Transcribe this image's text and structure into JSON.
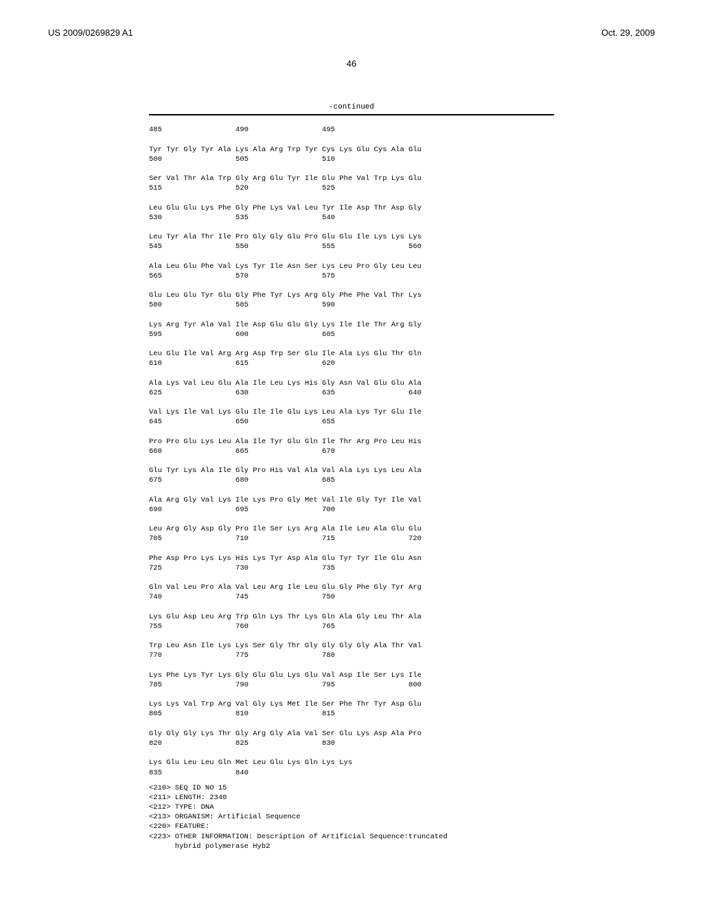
{
  "header": {
    "left": "US 2009/0269829 A1",
    "right": "Oct. 29, 2009"
  },
  "page_number": "46",
  "continued_label": "-continued",
  "sequence_rows": [
    "485                 490                 495",
    "",
    "Tyr Tyr Gly Tyr Ala Lys Ala Arg Trp Tyr Cys Lys Glu Cys Ala Glu",
    "500                 505                 510",
    "",
    "Ser Val Thr Ala Trp Gly Arg Glu Tyr Ile Glu Phe Val Trp Lys Glu",
    "515                 520                 525",
    "",
    "Leu Glu Glu Lys Phe Gly Phe Lys Val Leu Tyr Ile Asp Thr Asp Gly",
    "530                 535                 540",
    "",
    "Leu Tyr Ala Thr Ile Pro Gly Gly Glu Pro Glu Glu Ile Lys Lys Lys",
    "545                 550                 555                 560",
    "",
    "Ala Leu Glu Phe Val Lys Tyr Ile Asn Ser Lys Leu Pro Gly Leu Leu",
    "565                 570                 575",
    "",
    "Glu Leu Glu Tyr Glu Gly Phe Tyr Lys Arg Gly Phe Phe Val Thr Lys",
    "580                 585                 590",
    "",
    "Lys Arg Tyr Ala Val Ile Asp Glu Glu Gly Lys Ile Ile Thr Arg Gly",
    "595                 600                 605",
    "",
    "Leu Glu Ile Val Arg Arg Asp Trp Ser Glu Ile Ala Lys Glu Thr Gln",
    "610                 615                 620",
    "",
    "Ala Lys Val Leu Glu Ala Ile Leu Lys His Gly Asn Val Glu Glu Ala",
    "625                 630                 635                 640",
    "",
    "Val Lys Ile Val Lys Glu Ile Ile Glu Lys Leu Ala Lys Tyr Glu Ile",
    "645                 650                 655",
    "",
    "Pro Pro Glu Lys Leu Ala Ile Tyr Glu Gln Ile Thr Arg Pro Leu His",
    "660                 665                 670",
    "",
    "Glu Tyr Lys Ala Ile Gly Pro His Val Ala Val Ala Lys Lys Leu Ala",
    "675                 680                 685",
    "",
    "Ala Arg Gly Val Lys Ile Lys Pro Gly Met Val Ile Gly Tyr Ile Val",
    "690                 695                 700",
    "",
    "Leu Arg Gly Asp Gly Pro Ile Ser Lys Arg Ala Ile Leu Ala Glu Glu",
    "705                 710                 715                 720",
    "",
    "Phe Asp Pro Lys Lys His Lys Tyr Asp Ala Glu Tyr Tyr Ile Glu Asn",
    "725                 730                 735",
    "",
    "Gln Val Leu Pro Ala Val Leu Arg Ile Leu Glu Gly Phe Gly Tyr Arg",
    "740                 745                 750",
    "",
    "Lys Glu Asp Leu Arg Trp Gln Lys Thr Lys Gln Ala Gly Leu Thr Ala",
    "755                 760                 765",
    "",
    "Trp Leu Asn Ile Lys Lys Ser Gly Thr Gly Gly Gly Gly Ala Thr Val",
    "770                 775                 780",
    "",
    "Lys Phe Lys Tyr Lys Gly Glu Glu Lys Glu Val Asp Ile Ser Lys Ile",
    "785                 790                 795                 800",
    "",
    "Lys Lys Val Trp Arg Val Gly Lys Met Ile Ser Phe Thr Tyr Asp Glu",
    "805                 810                 815",
    "",
    "Gly Gly Gly Lys Thr Gly Arg Gly Ala Val Ser Glu Lys Asp Ala Pro",
    "820                 825                 830",
    "",
    "Lys Glu Leu Leu Gln Met Leu Glu Lys Gln Lys Lys",
    "835                 840"
  ],
  "seq_meta": [
    "<210> SEQ ID NO 15",
    "<211> LENGTH: 2340",
    "<212> TYPE: DNA",
    "<213> ORGANISM: Artificial Sequence",
    "<220> FEATURE:",
    "<223> OTHER INFORMATION: Description of Artificial Sequence:truncated",
    "      hybrid polymerase Hyb2"
  ]
}
